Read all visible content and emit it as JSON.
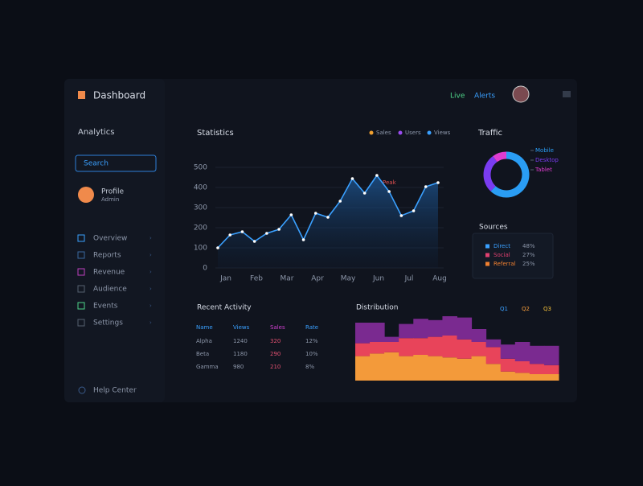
{
  "header": {
    "title": "Dashboard",
    "status": [
      "Live",
      "Alerts"
    ]
  },
  "sidebar": {
    "title": "Analytics",
    "search": "Search",
    "profile": {
      "name": "Profile",
      "role": "Admin"
    },
    "nav": [
      "Overview",
      "Reports",
      "Revenue",
      "Audience",
      "Events",
      "Settings"
    ],
    "footer": "Help Center"
  },
  "statistics": {
    "title": "Statistics",
    "type": "line",
    "color": "#3aa0ff",
    "legend": [
      {
        "name": "Sales",
        "color": "#f0a030"
      },
      {
        "name": "Users",
        "color": "#9a4cf0"
      },
      {
        "name": "Views",
        "color": "#3aa0ff"
      }
    ],
    "categories": [
      "Jan",
      "Feb",
      "Mar",
      "Apr",
      "May",
      "Jun",
      "Jul",
      "Aug"
    ],
    "values": [
      100,
      164,
      180,
      132,
      172,
      192,
      264,
      140,
      272,
      252,
      332,
      444,
      372,
      460,
      380,
      260,
      284,
      404,
      424
    ],
    "annotation": "Peak",
    "ylim": [
      0,
      500
    ],
    "yticks": [
      0,
      100,
      200,
      300,
      400,
      500
    ]
  },
  "traffic": {
    "title": "Traffic",
    "type": "pie",
    "labels": [
      "Mobile",
      "Desktop",
      "Tablet"
    ],
    "values": [
      62,
      28,
      10
    ],
    "colors": [
      "#2a9df4",
      "#7a3cf0",
      "#e03cd0"
    ]
  },
  "sources": {
    "title": "Sources",
    "items": [
      {
        "name": "Direct",
        "value": "48%",
        "color": "#3aa0ff"
      },
      {
        "name": "Social",
        "value": "27%",
        "color": "#e04070"
      },
      {
        "name": "Referral",
        "value": "25%",
        "color": "#f08030"
      }
    ]
  },
  "table": {
    "title": "Recent Activity",
    "columns": [
      "Name",
      "Views",
      "Sales",
      "Rate"
    ],
    "rows": [
      [
        "Alpha",
        "1240",
        "320",
        "12%"
      ],
      [
        "Beta",
        "1180",
        "290",
        "10%"
      ],
      [
        "Gamma",
        "980",
        "210",
        "8%"
      ]
    ]
  },
  "distribution": {
    "title": "Distribution",
    "type": "stacked_area",
    "legend": [
      "Q1",
      "Q2",
      "Q3"
    ],
    "ylim": [
      0,
      100
    ],
    "series": [
      {
        "name": "Q1",
        "color": "#f39a3a",
        "values": [
          38,
          42,
          44,
          38,
          40,
          38,
          36,
          34,
          38,
          26,
          14,
          12,
          10,
          10
        ]
      },
      {
        "name": "Q2",
        "color": "#e8445a",
        "values": [
          20,
          18,
          16,
          28,
          26,
          30,
          34,
          30,
          22,
          26,
          20,
          18,
          16,
          14
        ]
      },
      {
        "name": "Q3",
        "color": "#7a2a90",
        "values": [
          32,
          30,
          8,
          22,
          30,
          26,
          30,
          34,
          20,
          12,
          22,
          30,
          28,
          30
        ]
      }
    ]
  }
}
